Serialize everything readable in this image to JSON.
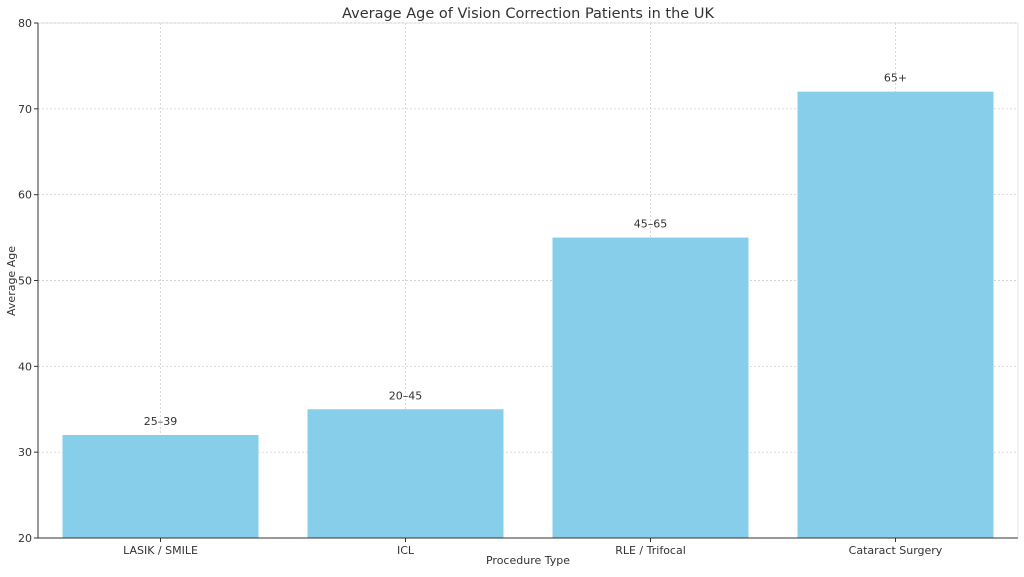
{
  "chart_data": {
    "type": "bar",
    "title": "Average Age of Vision Correction Patients in the UK",
    "xlabel": "Procedure Type",
    "ylabel": "Average Age",
    "categories": [
      "LASIK / SMILE",
      "ICL",
      "RLE / Trifocal",
      "Cataract Surgery"
    ],
    "values": [
      32,
      35,
      55,
      72
    ],
    "bar_labels": [
      "25–39",
      "20–45",
      "45–65",
      "65+"
    ],
    "ylim": [
      20,
      80
    ],
    "yticks": [
      "20",
      "30",
      "40",
      "50",
      "60",
      "70",
      "80"
    ],
    "grid": true,
    "bar_color": "#87CEEB"
  }
}
